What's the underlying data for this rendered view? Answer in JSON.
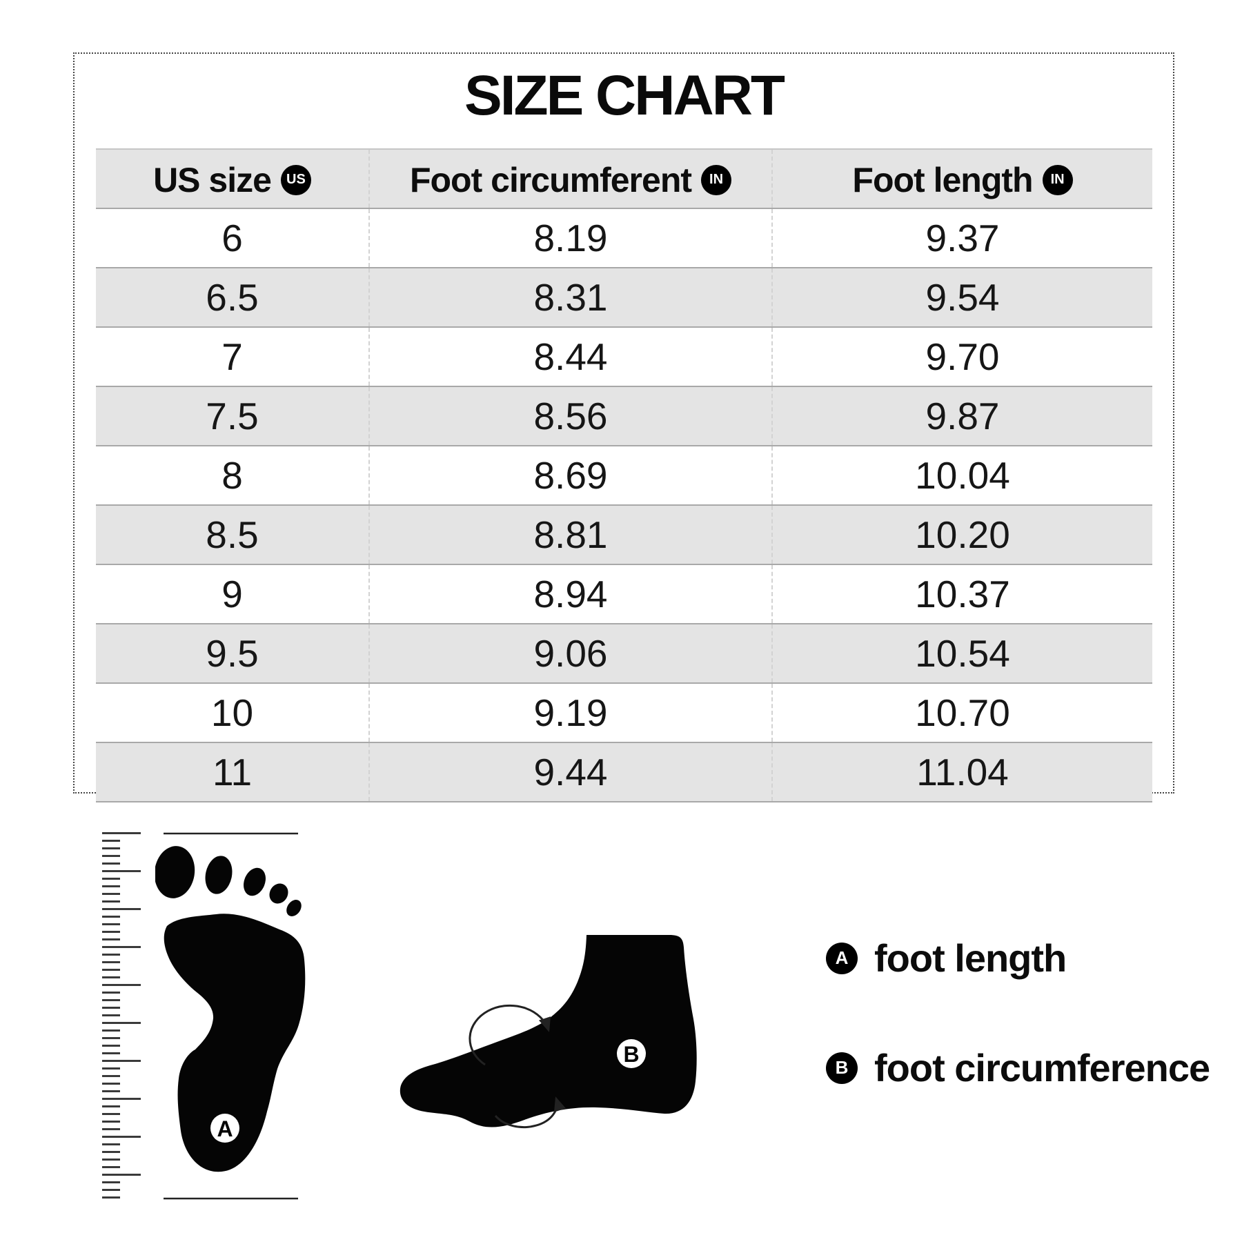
{
  "chart_data": {
    "type": "table",
    "title": "SIZE CHART",
    "columns": [
      {
        "label": "US size",
        "badge": "US"
      },
      {
        "label": "Foot circumferent",
        "badge": "IN"
      },
      {
        "label": "Foot length",
        "badge": "IN"
      }
    ],
    "rows": [
      [
        "6",
        "8.19",
        "9.37"
      ],
      [
        "6.5",
        "8.31",
        "9.54"
      ],
      [
        "7",
        "8.44",
        "9.70"
      ],
      [
        "7.5",
        "8.56",
        "9.87"
      ],
      [
        "8",
        "8.69",
        "10.04"
      ],
      [
        "8.5",
        "8.81",
        "10.20"
      ],
      [
        "9",
        "8.94",
        "10.37"
      ],
      [
        "9.5",
        "9.06",
        "10.54"
      ],
      [
        "10",
        "9.19",
        "10.70"
      ],
      [
        "11",
        "9.44",
        "11.04"
      ]
    ]
  },
  "diagram": {
    "footprint_marker": "A",
    "sock_marker": "B"
  },
  "legend": [
    {
      "marker": "A",
      "label": "foot length"
    },
    {
      "marker": "B",
      "label": "foot circumference"
    }
  ],
  "colors": {
    "stripe_gray": "#e4e4e4",
    "ink_black": "#0a0a0a",
    "border_gray": "#a8a8a8"
  }
}
